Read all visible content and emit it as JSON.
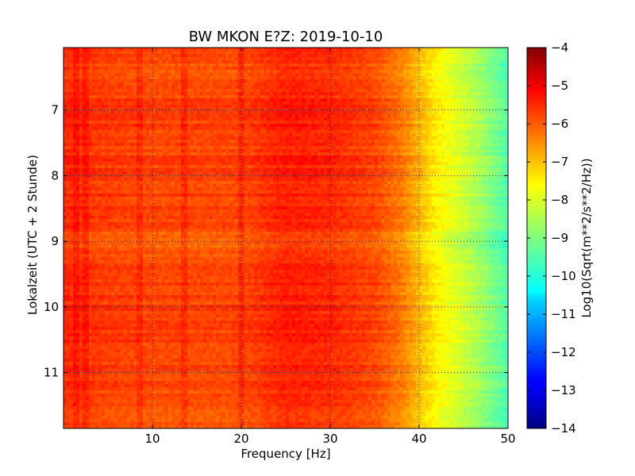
{
  "chart_data": {
    "type": "heatmap",
    "title": "BW MKON E?Z: 2019-10-10",
    "xlabel": "Frequency [Hz]",
    "ylabel": "Lokalzeit (UTC + 2 Stunde)",
    "xlim": [
      0,
      50
    ],
    "ylim": [
      11.85,
      6.05
    ],
    "x_ticks": [
      10,
      20,
      30,
      40,
      50
    ],
    "y_ticks": [
      7,
      8,
      9,
      10,
      11
    ],
    "grid": true,
    "colormap": "jet",
    "colorbar": {
      "label": "Log10(Sqrt(m**2/s**2/Hz))",
      "min": -14,
      "max": -4,
      "ticks": [
        -4,
        -5,
        -6,
        -7,
        -8,
        -9,
        -10,
        -11,
        -12,
        -13,
        -14
      ]
    },
    "spectrum_by_frequency": {
      "x": [
        0,
        5,
        10,
        15,
        20,
        25,
        30,
        35,
        38,
        40,
        42,
        44,
        46,
        48,
        50
      ],
      "values": [
        -5.6,
        -5.8,
        -5.9,
        -5.9,
        -5.9,
        -5.5,
        -5.6,
        -5.9,
        -6.4,
        -7.0,
        -7.6,
        -8.0,
        -8.4,
        -8.9,
        -9.4
      ]
    },
    "strong_lines_hz": [
      1.5,
      2.5,
      8.5,
      13.5,
      20
    ],
    "quieter_hours": [
      6.5,
      9.0,
      11.6
    ]
  }
}
